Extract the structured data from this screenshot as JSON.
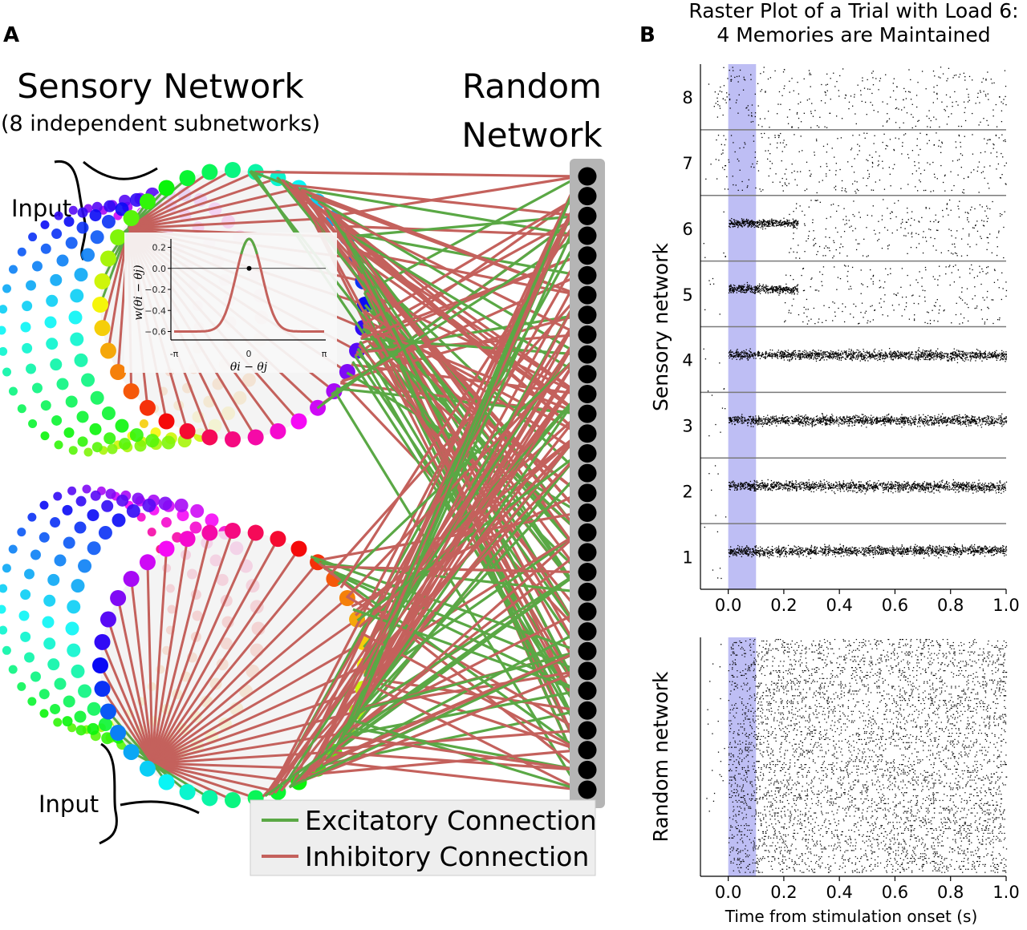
{
  "panel_a": {
    "letter": "A",
    "sensory_title": "Sensory Network",
    "sensory_subtitle": "(8 independent subnetworks)",
    "random_title_line1": "Random",
    "random_title_line2": "Network",
    "input_top": "Input",
    "input_bottom": "Input",
    "legend": {
      "excitatory": "Excitatory Connection",
      "inhibitory": "Inhibitory Connection"
    },
    "colors": {
      "excitatory": "#5aa845",
      "inhibitory": "#c4615c",
      "random_node": "#000000",
      "random_column": "#b5b5b5"
    },
    "random_node_count": 32,
    "ring_node_count": 36,
    "inset": {
      "ylabel": "w(θi − θj)",
      "xlabel": "θi − θj",
      "xticks": [
        "-π",
        "0",
        "π"
      ],
      "yticks": [
        "0.2",
        "0.0",
        "−0.2",
        "−0.4",
        "−0.6"
      ],
      "ytick_values": [
        0.2,
        0.0,
        -0.2,
        -0.4,
        -0.6
      ],
      "ylim": [
        -0.68,
        0.28
      ],
      "curve_color": "#c4615c",
      "peak_color": "#5aa845",
      "marker_value": [
        0.0,
        0.0
      ]
    }
  },
  "panel_b": {
    "letter": "B",
    "title_line1": "Raster Plot of a Trial with Load 6:",
    "title_line2": "4 Memories are Maintained",
    "sensory_ylabel": "Sensory network",
    "random_ylabel": "Random network",
    "xlabel": "Time from stimulation onset (s)",
    "xticks": [
      "0.0",
      "0.2",
      "0.4",
      "0.6",
      "0.8",
      "1.0"
    ],
    "xtick_values": [
      0.0,
      0.2,
      0.4,
      0.6,
      0.8,
      1.0
    ],
    "xlim": [
      -0.1,
      1.0
    ],
    "stimulus_window": [
      0.0,
      0.1
    ],
    "stimulus_color": "#a8a8f0",
    "subnetwork_labels": [
      "1",
      "2",
      "3",
      "4",
      "5",
      "6",
      "7",
      "8"
    ],
    "maintained_subnetworks": [
      "1",
      "2",
      "3",
      "4"
    ]
  },
  "chart_data": {
    "type": "scatter",
    "title": "Raster Plot of a Trial with Load 6: 4 Memories are Maintained",
    "xlabel": "Time from stimulation onset (s)",
    "ylabel": "Sensory network",
    "xlim": [
      -0.1,
      1.0
    ],
    "categories": [
      "1",
      "2",
      "3",
      "4",
      "5",
      "6",
      "7",
      "8"
    ],
    "series": [
      {
        "values": [
          1,
          1,
          1,
          1,
          1,
          1,
          1,
          1
        ]
      },
      {
        "values": [
          1,
          1,
          1,
          1,
          1,
          0.2,
          0,
          0
        ]
      }
    ]
  }
}
